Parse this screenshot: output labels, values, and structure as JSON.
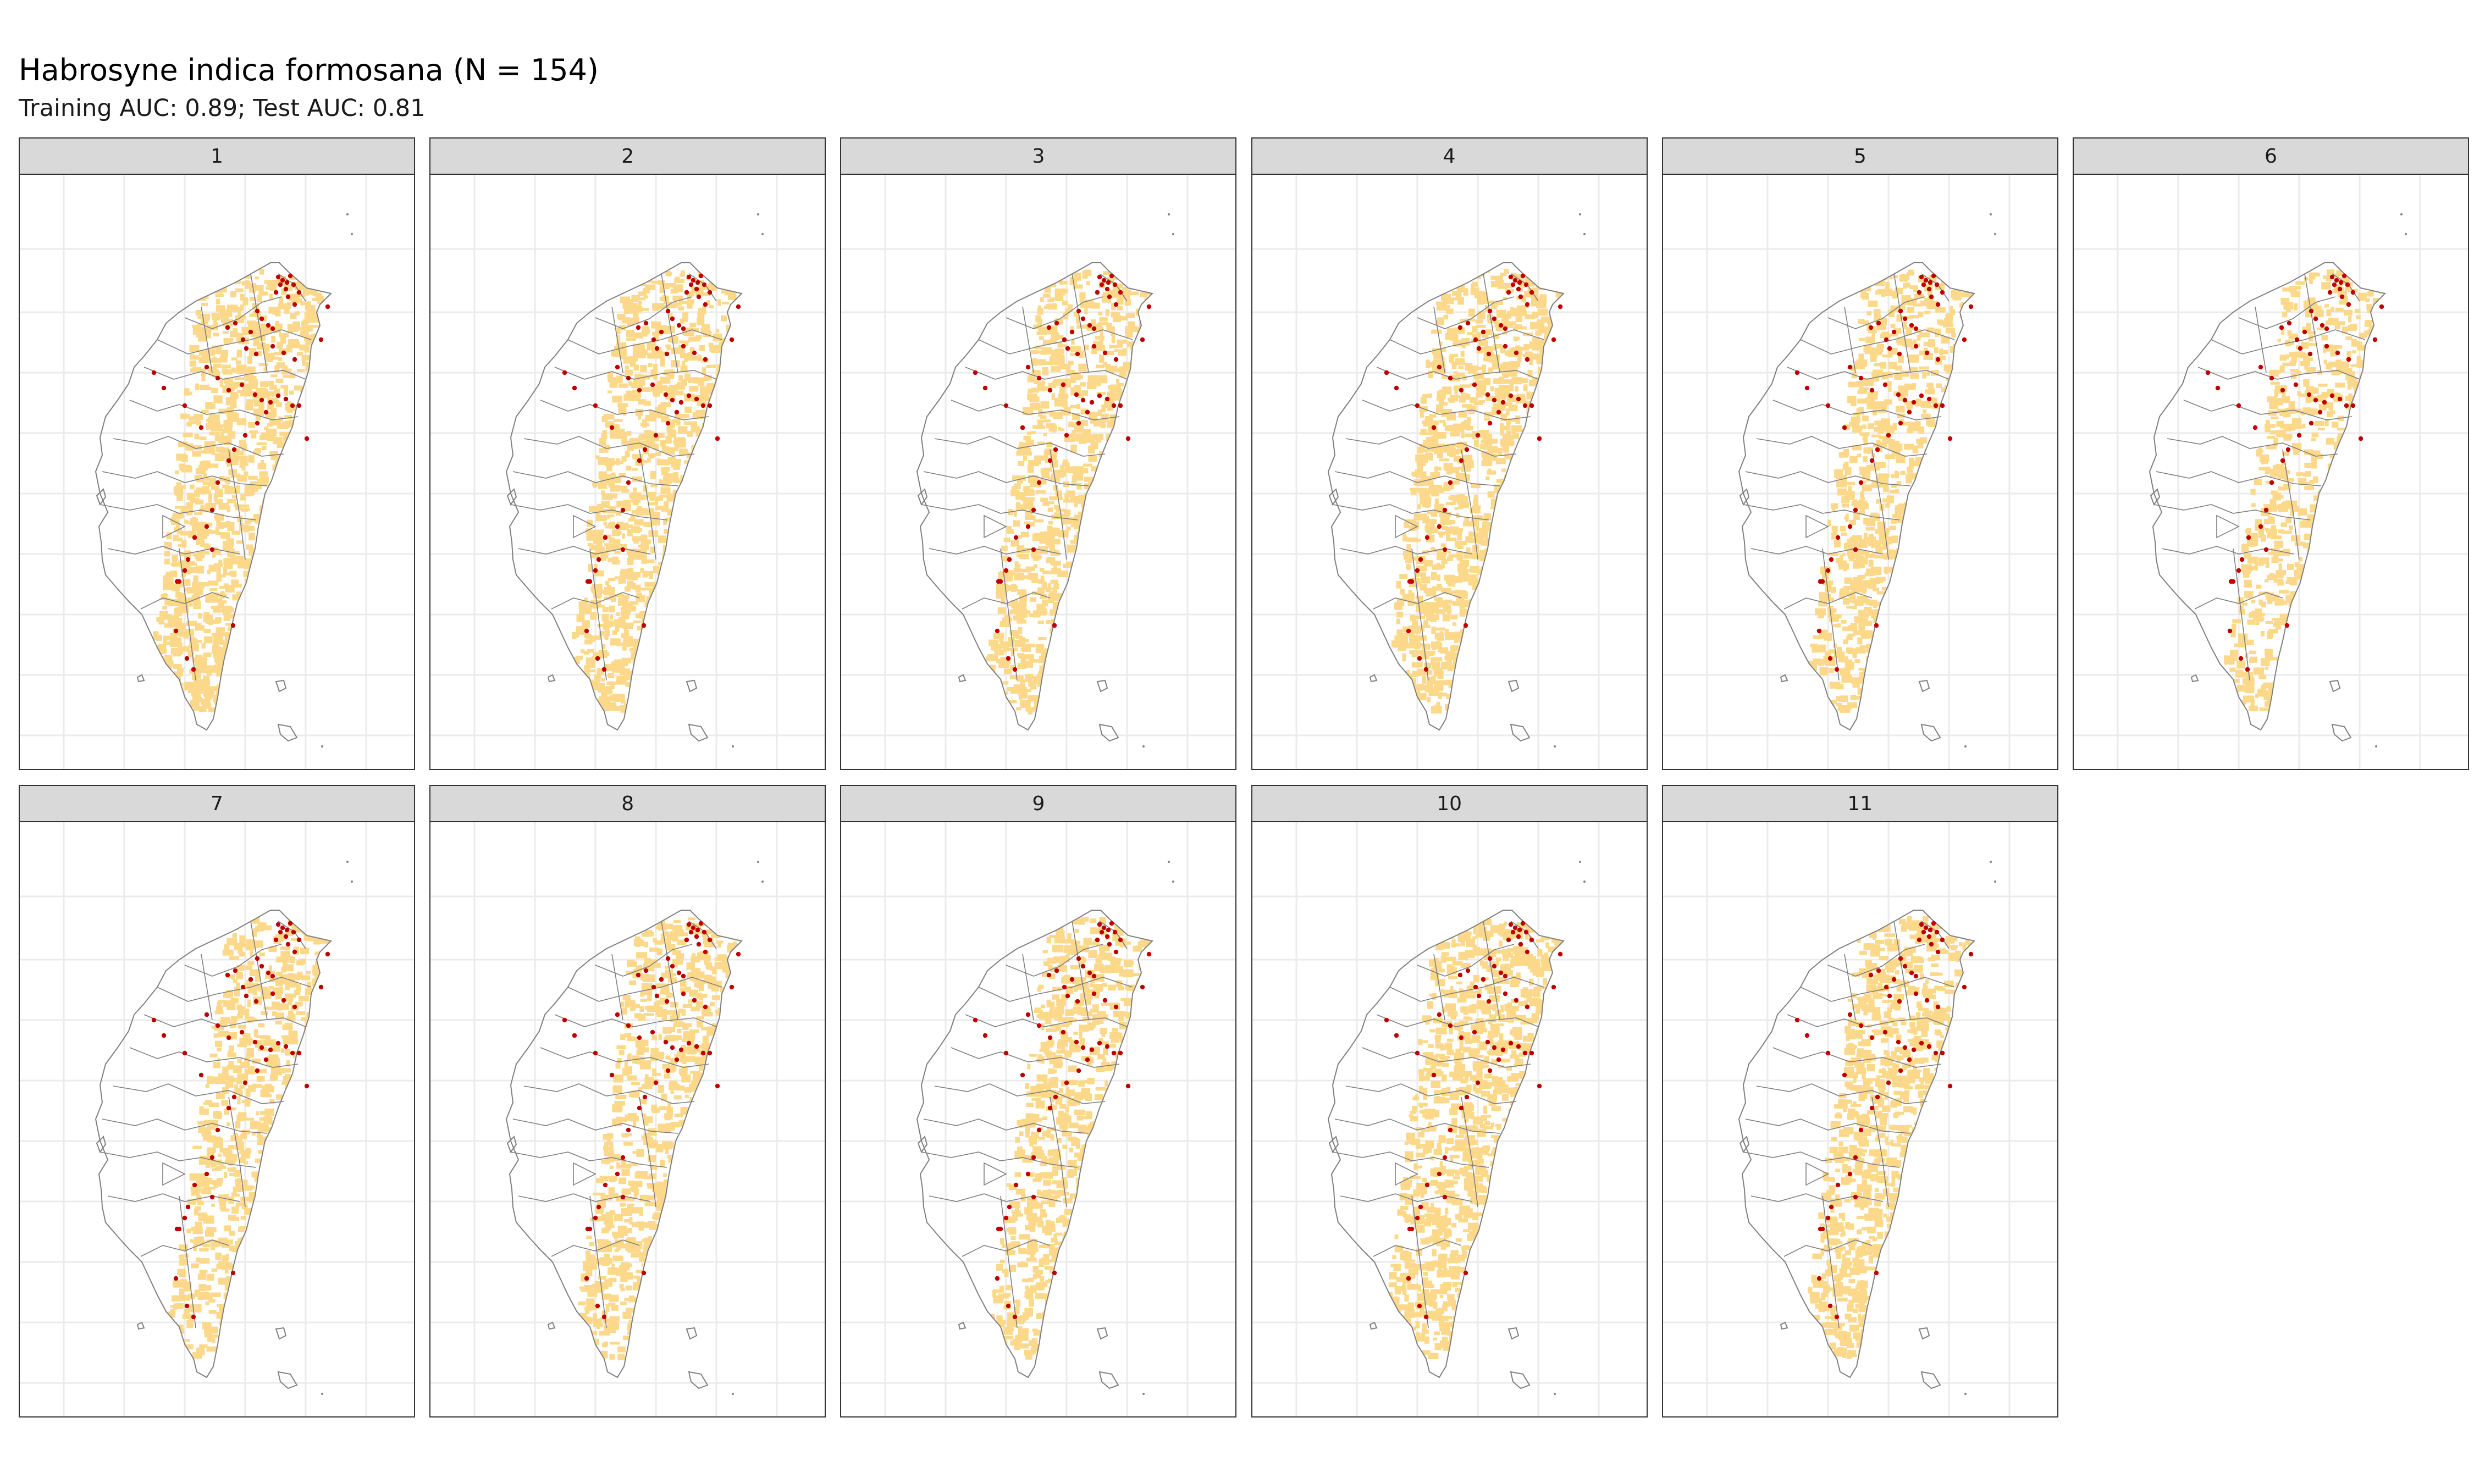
{
  "title": "Habrosyne indica formosana (N = 154)",
  "subtitle": "Training AUC: 0.89; Test AUC: 0.81",
  "colors": {
    "strip_bg": "#d9d9d9",
    "grid": "#ebebeb",
    "suitable_habitat": "#fcd98a",
    "occurrence_points": "#c00000",
    "boundaries": "#7f7f7f"
  },
  "facets": [
    {
      "label": "1",
      "suitability_extent": 0.92
    },
    {
      "label": "2",
      "suitability_extent": 0.72
    },
    {
      "label": "3",
      "suitability_extent": 0.55
    },
    {
      "label": "4",
      "suitability_extent": 0.82
    },
    {
      "label": "5",
      "suitability_extent": 0.55
    },
    {
      "label": "6",
      "suitability_extent": 0.38
    },
    {
      "label": "7",
      "suitability_extent": 0.42
    },
    {
      "label": "8",
      "suitability_extent": 0.5
    },
    {
      "label": "9",
      "suitability_extent": 0.46
    },
    {
      "label": "10",
      "suitability_extent": 0.88
    },
    {
      "label": "11",
      "suitability_extent": 0.62
    }
  ]
}
